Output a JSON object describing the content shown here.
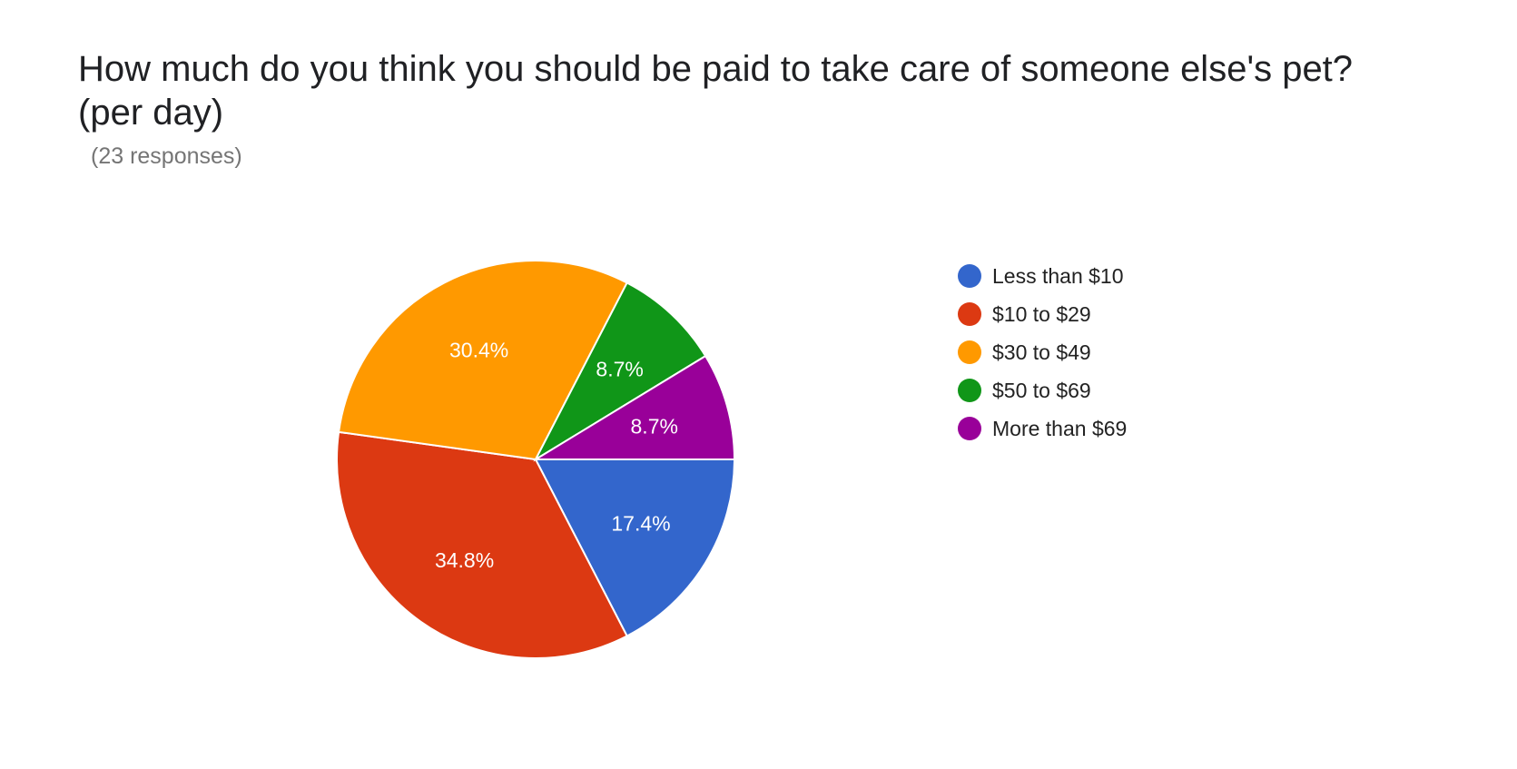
{
  "title": "How much do you think you should be paid to take care of someone else's pet? (per day)",
  "subtitle": "(23 responses)",
  "chart_data": {
    "type": "pie",
    "title": "How much do you think you should be paid to take care of someone else's pet? (per day)",
    "subtitle": "(23 responses)",
    "legend_position": "right",
    "slices": [
      {
        "label": "Less than $10",
        "value": 17.4,
        "display": "17.4%",
        "color": "#3366cc"
      },
      {
        "label": "$10 to $29",
        "value": 34.8,
        "display": "34.8%",
        "color": "#dc3912"
      },
      {
        "label": "$30 to $49",
        "value": 30.4,
        "display": "30.4%",
        "color": "#ff9900"
      },
      {
        "label": "$50 to $69",
        "value": 8.7,
        "display": "8.7%",
        "color": "#109618"
      },
      {
        "label": "More than $69",
        "value": 8.7,
        "display": "8.7%",
        "color": "#990099"
      }
    ]
  }
}
